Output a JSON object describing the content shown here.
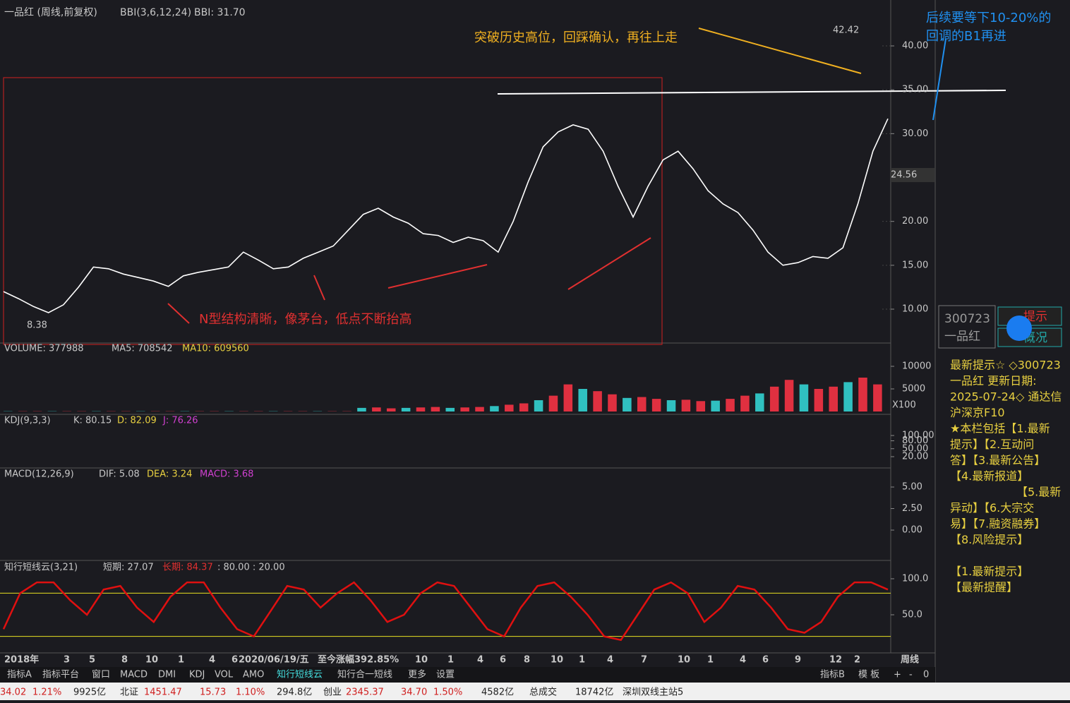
{
  "header": {
    "title": "一品红 (周线,前复权)",
    "indicator": "BBI(3,6,12,24)",
    "indicator_value": "BBI: 31.70"
  },
  "annotations": {
    "breakout": "突破历史高位，回踩确认，再往上走",
    "n_shape": "N型结构清晰，像茅台，低点不断抬高",
    "wait_line1": "后续要等下10-20%的",
    "wait_line2": "回调的B1再进"
  },
  "main": {
    "ylim": [
      6.22,
      45.23
    ],
    "yticks": [
      {
        "value": 40,
        "label": "40.00"
      },
      {
        "value": 35,
        "label": "35.00"
      },
      {
        "value": 30,
        "label": "30.00"
      },
      {
        "value": 20,
        "label": "20.00"
      },
      {
        "value": 15,
        "label": "15.00"
      },
      {
        "value": 10,
        "label": "10.00"
      }
    ],
    "values": [
      12,
      11.2,
      10.3,
      9.6,
      10.5,
      12.5,
      14.8,
      14.6,
      14,
      13.6,
      13.2,
      12.6,
      13.8,
      14.2,
      14.5,
      14.8,
      16.5,
      15.6,
      14.6,
      14.8,
      15.8,
      16.5,
      17.2,
      19,
      20.8,
      21.5,
      20.5,
      19.8,
      18.6,
      18.4,
      17.6,
      18.2,
      17.8,
      16.5,
      20,
      24.5,
      28.5,
      30.2,
      31,
      30.5,
      28,
      24,
      20.5,
      24,
      27,
      28,
      26,
      23.5,
      22,
      21,
      19,
      16.5,
      15,
      15.3,
      16,
      15.8,
      17,
      22,
      28,
      31.7
    ],
    "high_label": "42.42",
    "low_label": "8.38",
    "last_price": "24.56"
  },
  "volume": {
    "label": "VOLUME: 377988",
    "ma5": "MA5: 708542",
    "ma10": "MA10: 609560",
    "unit": "X100",
    "ylim": [
      0,
      14844
    ],
    "yticks": [
      10000,
      5000
    ],
    "values": [
      50,
      50,
      50,
      50,
      50,
      50,
      50,
      50,
      50,
      50,
      50,
      50,
      50,
      50,
      50,
      50,
      50,
      50,
      50,
      50,
      50,
      50,
      50,
      50,
      800,
      900,
      700,
      800,
      900,
      1000,
      800,
      900,
      1000,
      1200,
      1500,
      1800,
      2500,
      3500,
      6000,
      5000,
      4500,
      3800,
      3000,
      3200,
      2800,
      2500,
      2600,
      2300,
      2400,
      2800,
      3500,
      4000,
      5500,
      7000,
      6000,
      5000,
      5500,
      6500,
      7500,
      6000
    ]
  },
  "kdj": {
    "label": "KDJ(9,3,3)",
    "k": "K: 80.15",
    "d": "D: 82.09",
    "j": "J: 76.26",
    "ylim": [
      -20,
      172
    ],
    "yticks": [
      {
        "value": 100,
        "label": "100.00"
      },
      {
        "value": 80,
        "label": "80.00"
      },
      {
        "value": 50,
        "label": "50.00"
      },
      {
        "value": 20,
        "label": "20.00"
      }
    ]
  },
  "macd": {
    "label": "MACD(12,26,9)",
    "dif": "DIF: 5.08",
    "dea": "DEA: 3.24",
    "macd": "MACD: 3.68",
    "ylim": [
      -3.44,
      7.05
    ],
    "yticks": [
      {
        "value": 5,
        "label": "5.00"
      },
      {
        "value": 2.5,
        "label": "2.50"
      },
      {
        "value": 0,
        "label": "0.00"
      }
    ]
  },
  "zx": {
    "label": "知行短线云(3,21)",
    "short": "短期: 27.07",
    "long": "长期: 84.37",
    "levels_text": ": 80.00 : 20.00",
    "levels": [
      80,
      20
    ],
    "ylim": [
      -2.9,
      122.5
    ],
    "yticks": [
      {
        "value": 100,
        "label": "100.0"
      },
      {
        "value": 50,
        "label": "50.0"
      }
    ],
    "long_values": [
      30,
      80,
      95,
      95,
      70,
      50,
      85,
      90,
      60,
      40,
      75,
      95,
      95,
      60,
      30,
      20,
      55,
      90,
      85,
      60,
      80,
      95,
      70,
      40,
      50,
      80,
      95,
      90,
      60,
      30,
      20,
      60,
      90,
      95,
      75,
      50,
      20,
      15,
      50,
      85,
      95,
      80,
      40,
      60,
      90,
      85,
      60,
      30,
      25,
      40,
      75,
      95,
      95,
      85
    ]
  },
  "xaxis": [
    "2018年",
    "3",
    "5",
    "8",
    "10",
    "1",
    "4",
    "6",
    "2020/06/19/五",
    "至今涨幅392.85%",
    "10",
    "1",
    "4",
    "6",
    "8",
    "10",
    "1",
    "4",
    "7",
    "10",
    "1",
    "4",
    "6",
    "9",
    "12",
    "2",
    "周线"
  ],
  "tabs": [
    "指标A",
    "指标平台",
    "窗口",
    "MACD",
    "DMI",
    "KDJ",
    "VOL",
    "AMO",
    "知行短线云",
    "知行合一短线",
    "更多",
    "设置"
  ],
  "tabs_right": [
    "指标B",
    "模 板",
    "+",
    "-",
    "0"
  ],
  "status": [
    "34.02",
    "1.21%",
    "9925亿",
    "北证",
    "1451.47",
    "15.73",
    "1.10%",
    "294.8亿",
    "创业",
    "2345.37",
    "34.70",
    "1.50%",
    "4582亿",
    "总成交",
    "18742亿",
    "深圳双线主站5"
  ],
  "side": {
    "code": "300723",
    "name": "一品红",
    "btn1": "提示",
    "btn2": "概况",
    "lines": [
      "最新提示☆ ◇300723",
      "一品红 更新日期:",
      "2025-07-24◇ 通达信",
      "沪深京F10",
      "★本栏包括【1.最新",
      "提示】【2.互动问",
      "答】【3.最新公告】",
      "【4.最新报道】",
      "【5.最新",
      "异动】【6.大宗交",
      "易】【7.融资融券】",
      "【8.风险提示】",
      "",
      "【1.最新提示】",
      "【最新提醒】"
    ]
  }
}
